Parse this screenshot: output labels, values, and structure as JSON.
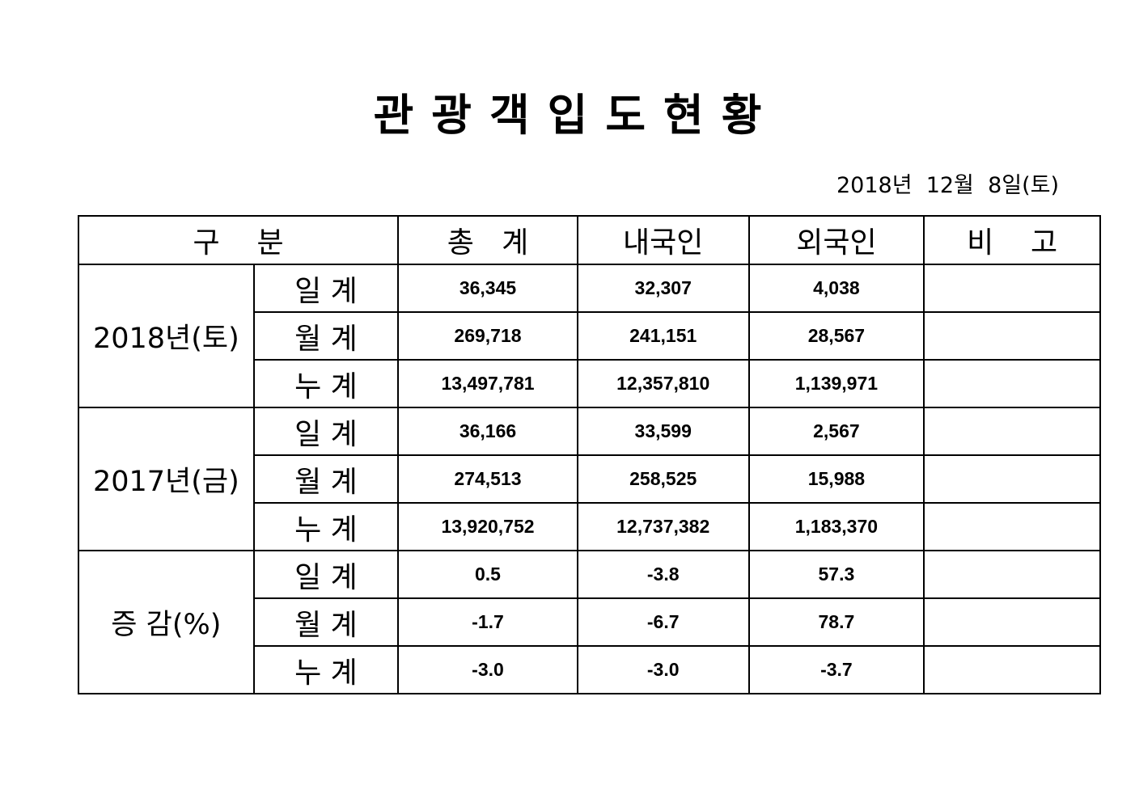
{
  "document": {
    "title": "관광객입도현황",
    "date": "2018년  12월  8일(토)"
  },
  "table": {
    "headers": {
      "category": "구    분",
      "total": "총   계",
      "domestic": "내국인",
      "foreign": "외국인",
      "note": "비    고"
    },
    "groups": [
      {
        "label": "2018년(토)",
        "rows": [
          {
            "label": "일 계",
            "total": "36,345",
            "domestic": "32,307",
            "foreign": "4,038",
            "note": ""
          },
          {
            "label": "월 계",
            "total": "269,718",
            "domestic": "241,151",
            "foreign": "28,567",
            "note": ""
          },
          {
            "label": "누 계",
            "total": "13,497,781",
            "domestic": "12,357,810",
            "foreign": "1,139,971",
            "note": ""
          }
        ]
      },
      {
        "label": "2017년(금)",
        "rows": [
          {
            "label": "일 계",
            "total": "36,166",
            "domestic": "33,599",
            "foreign": "2,567",
            "note": ""
          },
          {
            "label": "월 계",
            "total": "274,513",
            "domestic": "258,525",
            "foreign": "15,988",
            "note": ""
          },
          {
            "label": "누 계",
            "total": "13,920,752",
            "domestic": "12,737,382",
            "foreign": "1,183,370",
            "note": ""
          }
        ]
      },
      {
        "label": "증 감(%)",
        "rows": [
          {
            "label": "일 계",
            "total": "0.5",
            "domestic": "-3.8",
            "foreign": "57.3",
            "note": ""
          },
          {
            "label": "월 계",
            "total": "-1.7",
            "domestic": "-6.7",
            "foreign": "78.7",
            "note": ""
          },
          {
            "label": "누 계",
            "total": "-3.0",
            "domestic": "-3.0",
            "foreign": "-3.7",
            "note": ""
          }
        ]
      }
    ]
  }
}
